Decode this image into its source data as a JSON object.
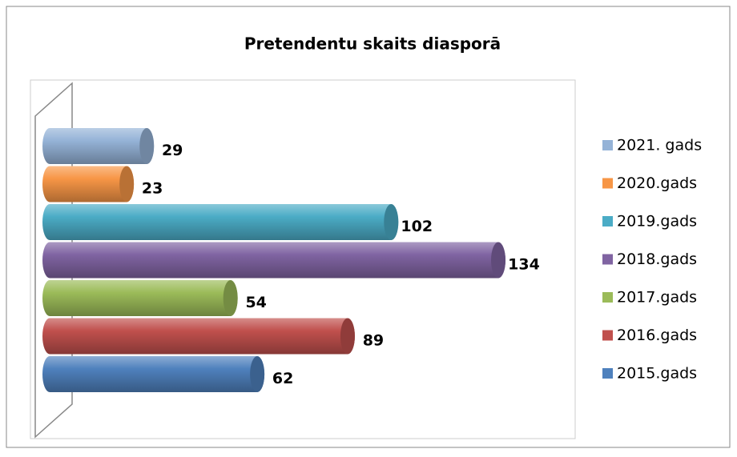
{
  "chart_data": {
    "type": "bar",
    "orientation": "horizontal",
    "title": "Pretendentu skaits diasporā",
    "series": [
      {
        "name": "2021. gads",
        "color": "#95B3D7",
        "values": [
          29
        ]
      },
      {
        "name": "2020.gads",
        "color": "#F79646",
        "values": [
          23
        ]
      },
      {
        "name": "2019.gads",
        "color": "#4BACC6",
        "values": [
          102
        ]
      },
      {
        "name": "2018.gads",
        "color": "#8064A2",
        "values": [
          134
        ]
      },
      {
        "name": "2017.gads",
        "color": "#9BBB59",
        "values": [
          54
        ]
      },
      {
        "name": "2016.gads",
        "color": "#C0504D",
        "values": [
          89
        ]
      },
      {
        "name": "2015.gads",
        "color": "#4F81BD",
        "values": [
          62
        ]
      }
    ],
    "legend": "right"
  }
}
